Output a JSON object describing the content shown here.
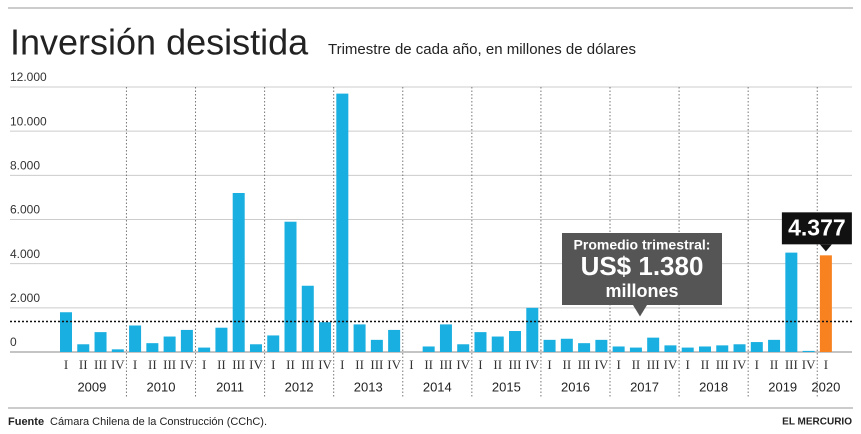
{
  "chart_data": {
    "type": "bar",
    "title": "Inversión desistida",
    "subtitle": "Trimestre de cada año, en millones de dólares",
    "categories": [
      "I",
      "II",
      "III",
      "IV",
      "I",
      "II",
      "III",
      "IV",
      "I",
      "II",
      "III",
      "IV",
      "I",
      "II",
      "III",
      "IV",
      "I",
      "II",
      "III",
      "IV",
      "I",
      "II",
      "III",
      "IV",
      "I",
      "II",
      "III",
      "IV",
      "I",
      "II",
      "III",
      "IV",
      "I",
      "II",
      "III",
      "IV",
      "I",
      "II",
      "III",
      "IV",
      "I",
      "II",
      "III",
      "IV",
      "I"
    ],
    "years": [
      "2009",
      "2010",
      "2011",
      "2012",
      "2013",
      "2014",
      "2015",
      "2016",
      "2017",
      "2018",
      "2019",
      "2020"
    ],
    "values": [
      1800,
      350,
      900,
      120,
      1200,
      400,
      700,
      1000,
      200,
      1100,
      7200,
      350,
      750,
      5900,
      3000,
      1350,
      11700,
      1250,
      550,
      1000,
      0,
      250,
      1250,
      350,
      900,
      700,
      950,
      2000,
      550,
      600,
      400,
      550,
      250,
      200,
      650,
      300,
      200,
      250,
      300,
      350,
      450,
      550,
      4500,
      50,
      4377
    ],
    "value_labels": [
      null,
      null,
      null,
      null,
      null,
      null,
      null,
      null,
      null,
      null,
      null,
      null,
      null,
      null,
      null,
      null,
      null,
      null,
      null,
      null,
      null,
      null,
      null,
      null,
      null,
      null,
      null,
      null,
      null,
      null,
      null,
      null,
      null,
      null,
      null,
      null,
      null,
      null,
      null,
      null,
      null,
      null,
      null,
      null,
      "4.377"
    ],
    "color": "#19afe0",
    "highlight_color": "#f7821f",
    "ylim": [
      0,
      12000
    ],
    "yticks": [
      0,
      {
        "value": 2000,
        "label": "2.000"
      },
      {
        "value": 4000,
        "label": "4.000"
      },
      {
        "value": 6000,
        "label": "6.000"
      },
      {
        "value": 8000,
        "label": "8.000"
      },
      {
        "value": 10000,
        "label": "10.000"
      },
      {
        "value": 12000,
        "label": "12.000"
      }
    ],
    "grid": true,
    "reference_line": {
      "value": 1380,
      "label_lines": [
        "Promedio trimestral:",
        "US$ 1.380",
        "millones"
      ]
    },
    "source_label": "Fuente",
    "source": "Cámara Chilena de la Construcción (CChC).",
    "brand": "EL MERCURIO"
  }
}
